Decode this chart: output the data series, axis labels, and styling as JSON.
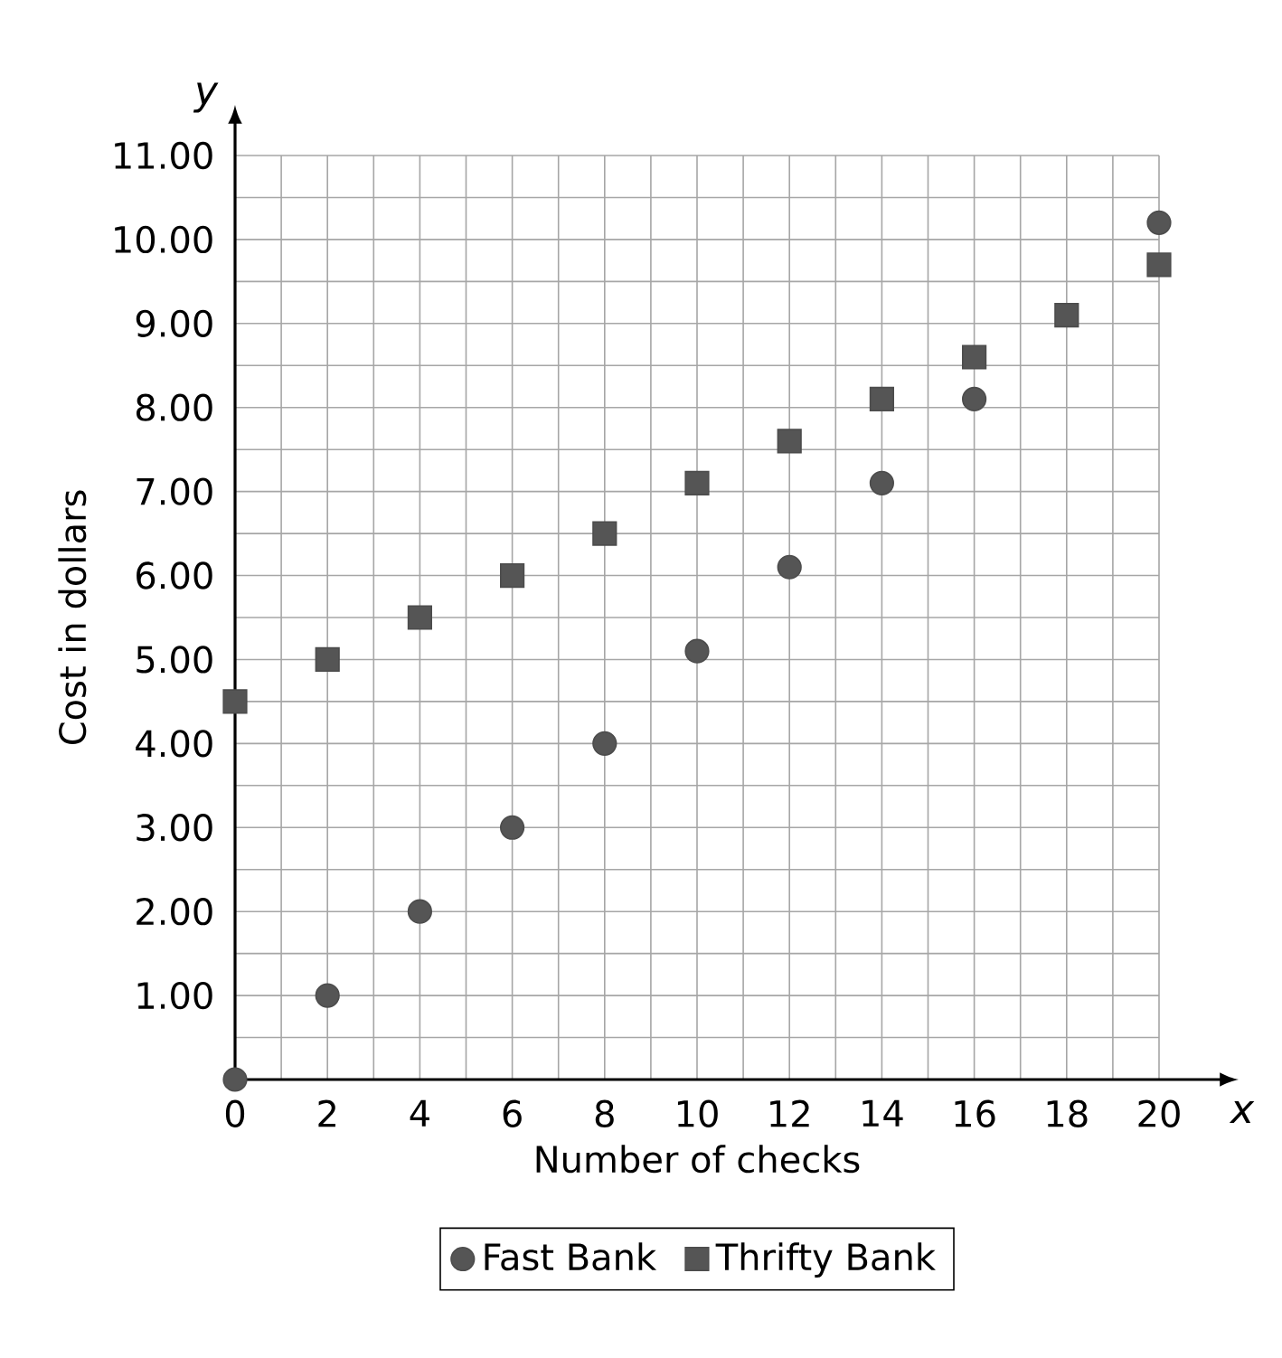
{
  "chart_data": {
    "type": "scatter",
    "xlabel": "Number of checks",
    "ylabel": "Cost in dollars",
    "annotations": [
      "x",
      "y"
    ],
    "xlim": [
      0,
      20
    ],
    "ylim": [
      0,
      11
    ],
    "xticks": [
      0,
      2,
      4,
      6,
      8,
      10,
      12,
      14,
      16,
      18,
      20
    ],
    "yticks": [
      {
        "value": 0,
        "label": null
      },
      {
        "value": 1,
        "label": "1.00"
      },
      {
        "value": 2,
        "label": "2.00"
      },
      {
        "value": 3,
        "label": "3.00"
      },
      {
        "value": 4,
        "label": "4.00"
      },
      {
        "value": 5,
        "label": "5.00"
      },
      {
        "value": 6,
        "label": "6.00"
      },
      {
        "value": 7,
        "label": "7.00"
      },
      {
        "value": 8,
        "label": "8.00"
      },
      {
        "value": 9,
        "label": "9.00"
      },
      {
        "value": 10,
        "label": "10.00"
      },
      {
        "value": 11,
        "label": "11.00"
      }
    ],
    "grid": true,
    "legend": "bottom",
    "series": [
      {
        "name": "Fast Bank",
        "color": "#555555",
        "marker": "circle",
        "x": [
          0,
          2,
          4,
          6,
          8,
          10,
          12,
          14,
          16,
          20
        ],
        "values": [
          0,
          1,
          2,
          3,
          4,
          5.1,
          6.1,
          7.1,
          8.1,
          10.2
        ]
      },
      {
        "name": "Thrifty Bank",
        "color": "#555555",
        "marker": "square",
        "x": [
          0,
          2,
          4,
          6,
          8,
          10,
          12,
          14,
          16,
          18,
          20
        ],
        "values": [
          4.5,
          5.0,
          5.5,
          6.0,
          6.5,
          7.1,
          7.6,
          8.1,
          8.6,
          9.1,
          9.7
        ]
      }
    ]
  }
}
